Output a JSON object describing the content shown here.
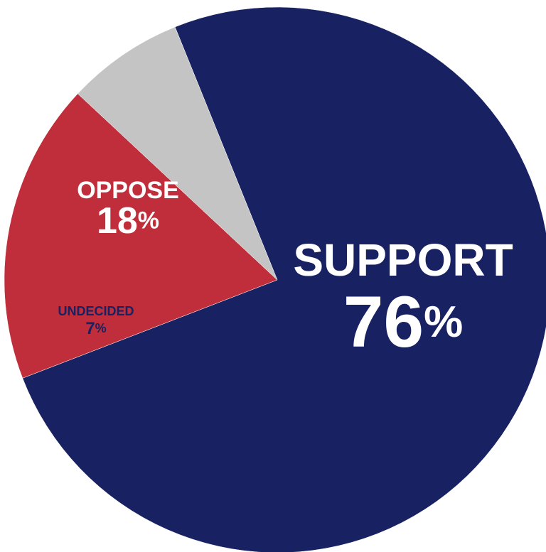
{
  "chart_data": {
    "type": "pie",
    "slices": [
      {
        "label": "SUPPORT",
        "value": 76,
        "display": "76%",
        "color": "#182262",
        "label_color": "#ffffff"
      },
      {
        "label": "OPPOSE",
        "value": 18,
        "display": "18%",
        "color": "#bf2e3a",
        "label_color": "#ffffff"
      },
      {
        "label": "UNDECIDED",
        "value": 7,
        "display": "7%",
        "color": "#c4c4c4",
        "label_color": "#182262"
      }
    ],
    "start_angle_deg": -112,
    "direction": "clockwise"
  }
}
